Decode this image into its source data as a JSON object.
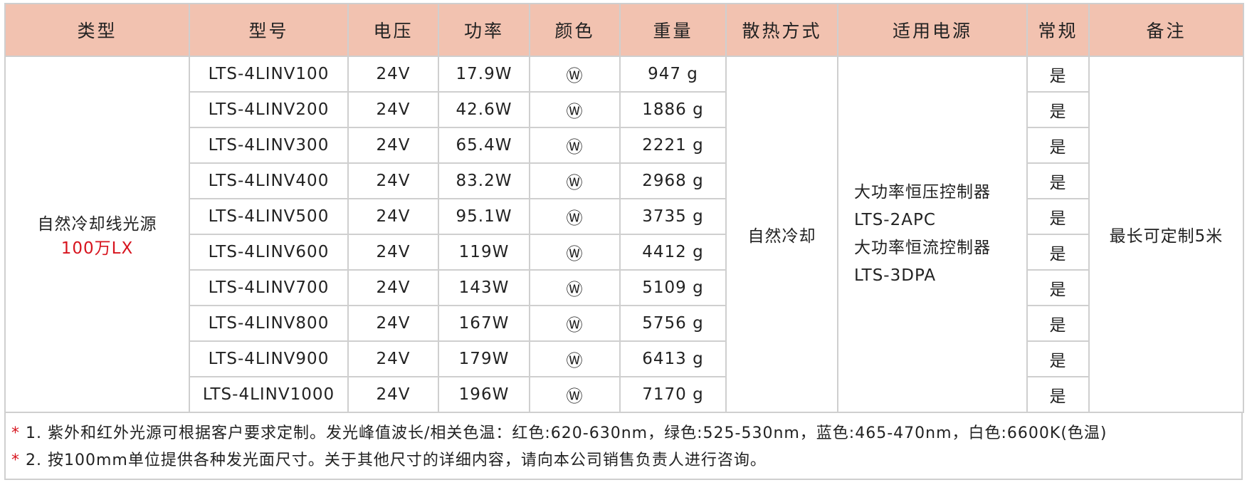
{
  "table": {
    "header": [
      "类型",
      "型号",
      "电压",
      "功率",
      "颜色",
      "重量",
      "散热方式",
      "适用电源",
      "常规",
      "备注"
    ],
    "type": [
      "自然冷却线光源",
      "100万LX"
    ],
    "cooling": "自然冷却",
    "power_supply": [
      "大功率恒压控制器",
      "LTS-2APC",
      "大功率恒流控制器",
      "LTS-3DPA"
    ],
    "note": "最长可定制5米",
    "rows": [
      [
        "LTS-4LINV100",
        "24V",
        "17.9W",
        "Ⓦ",
        "947  g",
        "是"
      ],
      [
        "LTS-4LINV200",
        "24V",
        "42.6W",
        "Ⓦ",
        "1886 g",
        "是"
      ],
      [
        "LTS-4LINV300",
        "24V",
        "65.4W",
        "Ⓦ",
        "2221 g",
        "是"
      ],
      [
        "LTS-4LINV400",
        "24V",
        "83.2W",
        "Ⓦ",
        "2968 g",
        "是"
      ],
      [
        "LTS-4LINV500",
        "24V",
        "95.1W",
        "Ⓦ",
        "3735 g",
        "是"
      ],
      [
        "LTS-4LINV600",
        "24V",
        "119W",
        "Ⓦ",
        "4412 g",
        "是"
      ],
      [
        "LTS-4LINV700",
        "24V",
        "143W",
        "Ⓦ",
        "5109 g",
        "是"
      ],
      [
        "LTS-4LINV800",
        "24V",
        "167W",
        "Ⓦ",
        "5756 g",
        "是"
      ],
      [
        "LTS-4LINV900",
        "24V",
        "179W",
        "Ⓦ",
        "6413 g",
        "是"
      ],
      [
        "LTS-4LINV1000",
        "24V",
        "196W",
        "Ⓦ",
        "7170 g",
        "是"
      ]
    ]
  },
  "footnotes": [
    {
      "mark": "*",
      "text": "1. 紫外和红外光源可根据客户要求定制。发光峰值波长/相关色温：红色:620-630nm，绿色:525-530nm，蓝色:465-470nm，白色:6600K(色温)"
    },
    {
      "mark": "*",
      "text": "2. 按100mm单位提供各种发光面尺寸。关于其他尺寸的详细内容，请向本公司销售负责人进行咨询。"
    }
  ]
}
